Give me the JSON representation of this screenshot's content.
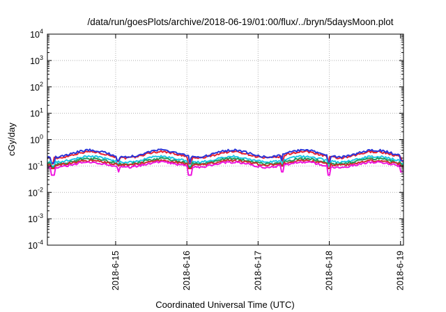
{
  "chart_data": {
    "type": "line",
    "title": "/data/run/goesPlots/archive/2018-06-19/01:00/flux/../bryn/5daysMoon.plot",
    "xlabel": "Coordinated Universal Time (UTC)",
    "ylabel": "cGy/day",
    "yscale": "log",
    "ylim": [
      0.0001,
      10000
    ],
    "xlim": [
      "2018-06-14 01:00",
      "2018-06-19 01:00"
    ],
    "grid": true,
    "y_ticks": [
      {
        "base": "10",
        "exp": "-4",
        "value": 0.0001
      },
      {
        "base": "10",
        "exp": "-3",
        "value": 0.001
      },
      {
        "base": "10",
        "exp": "-2",
        "value": 0.01
      },
      {
        "base": "10",
        "exp": "-1",
        "value": 0.1
      },
      {
        "base": "10",
        "exp": "0",
        "value": 1
      },
      {
        "base": "10",
        "exp": "1",
        "value": 10
      },
      {
        "base": "10",
        "exp": "2",
        "value": 100
      },
      {
        "base": "10",
        "exp": "3",
        "value": 1000
      },
      {
        "base": "10",
        "exp": "4",
        "value": 10000
      }
    ],
    "x_ticks": [
      {
        "label": "2018-6-15",
        "value": "2018-06-15 00:00"
      },
      {
        "label": "2018-6-16",
        "value": "2018-06-16 00:00"
      },
      {
        "label": "2018-6-17",
        "value": "2018-06-17 00:00"
      },
      {
        "label": "2018-6-18",
        "value": "2018-06-18 00:00"
      },
      {
        "label": "2018-6-19",
        "value": "2018-06-19 00:00"
      }
    ],
    "series": [
      {
        "color": "#e8212f",
        "day_max": 0.35,
        "night_min": 0.2,
        "night_dips": [
          0.12,
          0.15
        ]
      },
      {
        "color": "#2b35d9",
        "day_max": 0.4,
        "night_min": 0.22,
        "night_dips": [
          0.13,
          0.16
        ]
      },
      {
        "color": "#1ec6e6",
        "day_max": 0.23,
        "night_min": 0.14,
        "night_dips": [
          0.1,
          0.12
        ]
      },
      {
        "color": "#1f9a5a",
        "day_max": 0.19,
        "night_min": 0.12,
        "night_dips": [
          0.09,
          0.11
        ]
      },
      {
        "color": "#cc2a2a",
        "day_max": 0.16,
        "night_min": 0.11,
        "night_dips": [
          0.08,
          0.1
        ]
      },
      {
        "color": "#ee15dd",
        "day_max": 0.14,
        "night_min": 0.09,
        "night_dips": [
          0.045,
          0.06
        ]
      }
    ]
  }
}
